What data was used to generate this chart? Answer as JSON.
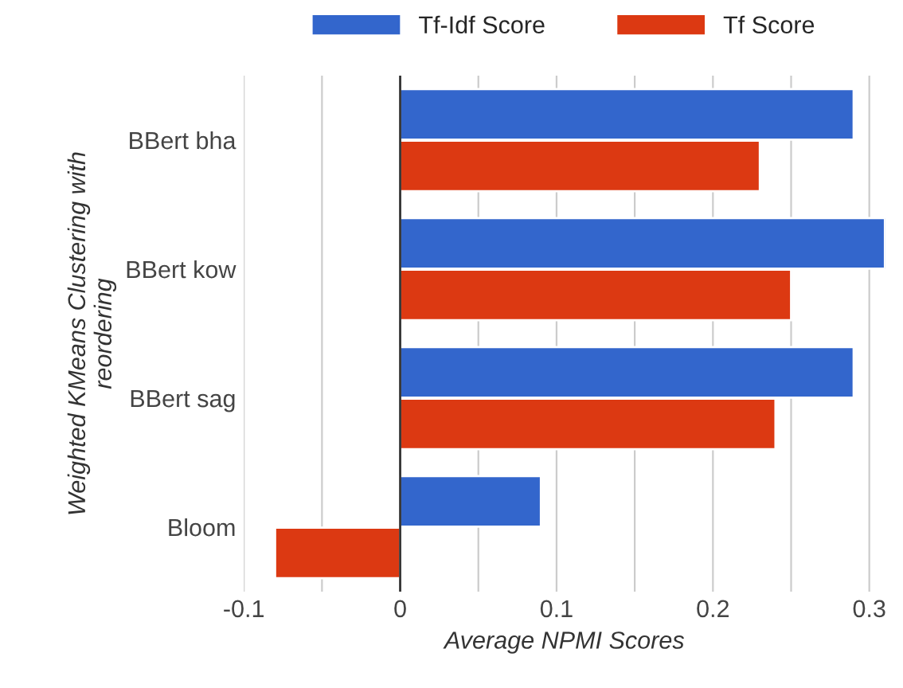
{
  "chart_data": {
    "type": "bar",
    "orientation": "horizontal",
    "categories": [
      "BBert bha",
      "BBert kow",
      "BBert sag",
      "Bloom"
    ],
    "series": [
      {
        "name": "Tf-Idf Score",
        "color": "#3366cc",
        "values": [
          0.29,
          0.31,
          0.29,
          0.09
        ]
      },
      {
        "name": "Tf Score",
        "color": "#dc3912",
        "values": [
          0.23,
          0.25,
          0.24,
          -0.08
        ]
      }
    ],
    "xlabel": "Average NPMI Scores",
    "ylabel": "Weighted KMeans Clustering with\nreordering",
    "xlim": [
      -0.1,
      0.31
    ],
    "xticks": [
      -0.1,
      {
        "value": -0.05,
        "label": null
      },
      0,
      {
        "value": 0.05,
        "label": null
      },
      0.1,
      {
        "value": 0.15,
        "label": null
      },
      0.2,
      {
        "value": 0.25,
        "label": null
      },
      0.3
    ],
    "grid": "x",
    "legend": "top"
  }
}
